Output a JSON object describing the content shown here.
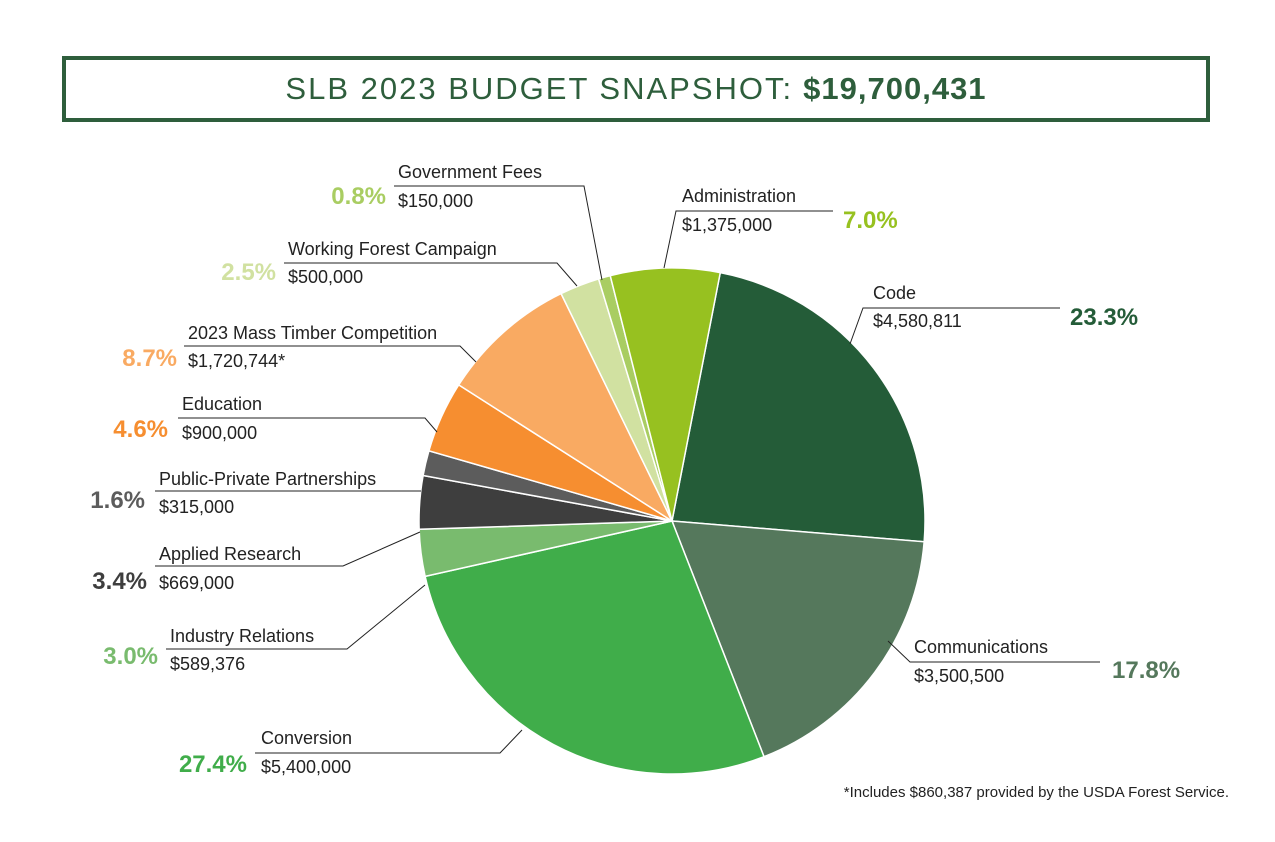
{
  "title": {
    "prefix": "SLB 2023 BUDGET SNAPSHOT:",
    "amount": "$19,700,431"
  },
  "footnote": "*Includes $860,387 provided by the USDA Forest Service.",
  "chart_data": {
    "type": "pie",
    "total": "$19,700,431",
    "slices": [
      {
        "name": "Code",
        "amount": "$4,580,811",
        "value": 4580811,
        "percent": 23.3,
        "percent_label": "23.3%",
        "color": "#245c38"
      },
      {
        "name": "Communications",
        "amount": "$3,500,500",
        "value": 3500500,
        "percent": 17.8,
        "percent_label": "17.8%",
        "color": "#55785c"
      },
      {
        "name": "Conversion",
        "amount": "$5,400,000",
        "value": 5400000,
        "percent": 27.4,
        "percent_label": "27.4%",
        "color": "#40ad4a"
      },
      {
        "name": "Industry Relations",
        "amount": "$589,376",
        "value": 589376,
        "percent": 3.0,
        "percent_label": "3.0%",
        "color": "#79bb6e"
      },
      {
        "name": "Applied Research",
        "amount": "$669,000",
        "value": 669000,
        "percent": 3.4,
        "percent_label": "3.4%",
        "color": "#3e3e3e"
      },
      {
        "name": "Public-Private Partnerships",
        "amount": "$315,000",
        "value": 315000,
        "percent": 1.6,
        "percent_label": "1.6%",
        "color": "#5c5c5c"
      },
      {
        "name": "Education",
        "amount": "$900,000",
        "value": 900000,
        "percent": 4.6,
        "percent_label": "4.6%",
        "color": "#f68e30"
      },
      {
        "name": "2023 Mass Timber Competition",
        "amount": "$1,720,744*",
        "value": 1720744,
        "percent": 8.7,
        "percent_label": "8.7%",
        "color": "#f9aa62"
      },
      {
        "name": "Working Forest Campaign",
        "amount": "$500,000",
        "value": 500000,
        "percent": 2.5,
        "percent_label": "2.5%",
        "color": "#d1e1a1"
      },
      {
        "name": "Government Fees",
        "amount": "$150,000",
        "value": 150000,
        "percent": 0.8,
        "percent_label": "0.8%",
        "color": "#a9cd62"
      },
      {
        "name": "Administration",
        "amount": "$1,375,000",
        "value": 1375000,
        "percent": 7.0,
        "percent_label": "7.0%",
        "color": "#97c120"
      }
    ]
  }
}
